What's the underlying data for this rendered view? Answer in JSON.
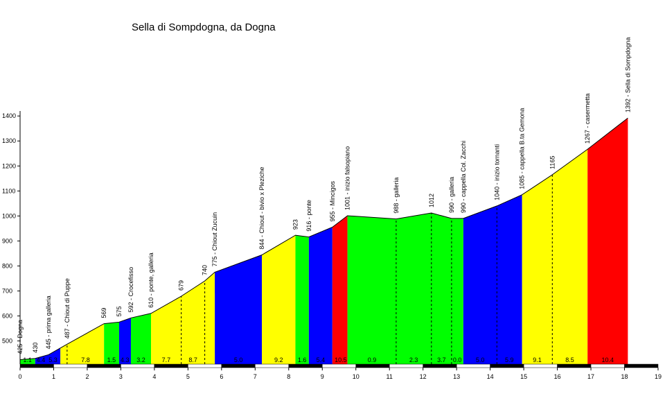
{
  "chart_data": {
    "type": "area",
    "title": "Sella di Sompdogna, da Dogna",
    "xlabel": "",
    "ylabel": "",
    "xlim": [
      0,
      19
    ],
    "ylim": [
      400,
      1400
    ],
    "x_ticks": [
      0,
      1,
      2,
      3,
      4,
      5,
      6,
      7,
      8,
      9,
      10,
      11,
      12,
      13,
      14,
      15,
      16,
      17,
      18,
      19
    ],
    "y_ticks": [
      500,
      600,
      700,
      800,
      900,
      1000,
      1100,
      1200,
      1300,
      1400
    ],
    "segment_colors": {
      "green": "#00ff00",
      "blue": "#0000ff",
      "yellow": "#ffff00",
      "red": "#ff0000"
    },
    "profile": [
      {
        "x": 0.0,
        "y": 425
      },
      {
        "x": 0.45,
        "y": 430
      },
      {
        "x": 0.85,
        "y": 445
      },
      {
        "x": 1.4,
        "y": 487
      },
      {
        "x": 2.5,
        "y": 569
      },
      {
        "x": 2.95,
        "y": 575
      },
      {
        "x": 3.3,
        "y": 592
      },
      {
        "x": 3.9,
        "y": 610
      },
      {
        "x": 4.8,
        "y": 679
      },
      {
        "x": 5.5,
        "y": 740
      },
      {
        "x": 5.8,
        "y": 775
      },
      {
        "x": 7.2,
        "y": 844
      },
      {
        "x": 8.2,
        "y": 923
      },
      {
        "x": 8.6,
        "y": 916
      },
      {
        "x": 9.3,
        "y": 955
      },
      {
        "x": 9.75,
        "y": 1001
      },
      {
        "x": 11.2,
        "y": 988
      },
      {
        "x": 12.25,
        "y": 1012
      },
      {
        "x": 12.85,
        "y": 990
      },
      {
        "x": 13.2,
        "y": 990
      },
      {
        "x": 14.2,
        "y": 1040
      },
      {
        "x": 14.95,
        "y": 1085
      },
      {
        "x": 15.85,
        "y": 1165
      },
      {
        "x": 16.9,
        "y": 1267
      },
      {
        "x": 18.1,
        "y": 1392
      }
    ],
    "segments": [
      {
        "from": 0.0,
        "to": 0.45,
        "color": "green",
        "gradient": "1.1"
      },
      {
        "from": 0.45,
        "to": 1.2,
        "color": "blue",
        "gradient": "4.4"
      },
      {
        "from": 1.2,
        "to": 2.5,
        "color": "yellow",
        "gradient": "7.8"
      },
      {
        "from": 2.5,
        "to": 2.95,
        "color": "green",
        "gradient": "1.5"
      },
      {
        "from": 2.95,
        "to": 3.3,
        "color": "blue",
        "gradient": "4.3"
      },
      {
        "from": 3.3,
        "to": 3.9,
        "color": "green",
        "gradient": "3.2"
      },
      {
        "from": 3.9,
        "to": 5.8,
        "color": "yellow",
        "gradient": "7.7"
      },
      {
        "from": 5.8,
        "to": 7.2,
        "color": "blue",
        "gradient": "5.0"
      },
      {
        "from": 7.2,
        "to": 8.2,
        "color": "yellow",
        "gradient": "9.2"
      },
      {
        "from": 8.2,
        "to": 8.6,
        "color": "green",
        "gradient": "1.6"
      },
      {
        "from": 8.6,
        "to": 9.3,
        "color": "blue",
        "gradient": "5.4"
      },
      {
        "from": 9.3,
        "to": 9.75,
        "color": "red",
        "gradient": "10.5"
      },
      {
        "from": 9.75,
        "to": 13.2,
        "color": "green",
        "gradient": "0.9"
      },
      {
        "from": 13.2,
        "to": 14.95,
        "color": "blue",
        "gradient": "5.2"
      },
      {
        "from": 14.95,
        "to": 16.9,
        "color": "yellow",
        "gradient": "9.1"
      },
      {
        "from": 16.9,
        "to": 18.1,
        "color": "red",
        "gradient": "10.4"
      }
    ],
    "gradient_labels": [
      {
        "x": 0.22,
        "text": "1.1"
      },
      {
        "x": 0.62,
        "text": "4.4"
      },
      {
        "x": 0.98,
        "text": "5.3"
      },
      {
        "x": 1.95,
        "text": "7.8"
      },
      {
        "x": 2.72,
        "text": "1.5"
      },
      {
        "x": 3.12,
        "text": "4.3"
      },
      {
        "x": 3.6,
        "text": "3.2"
      },
      {
        "x": 4.35,
        "text": "7.7"
      },
      {
        "x": 5.15,
        "text": "8.7"
      },
      {
        "x": 6.5,
        "text": "5.0"
      },
      {
        "x": 7.7,
        "text": "9.2"
      },
      {
        "x": 8.4,
        "text": "1.6"
      },
      {
        "x": 8.95,
        "text": "5.4"
      },
      {
        "x": 9.55,
        "text": "10.5"
      },
      {
        "x": 10.48,
        "text": "0.9"
      },
      {
        "x": 11.72,
        "text": "2.3"
      },
      {
        "x": 12.55,
        "text": "3.7"
      },
      {
        "x": 13.02,
        "text": "0.0"
      },
      {
        "x": 13.7,
        "text": "5.0"
      },
      {
        "x": 14.57,
        "text": "5.9"
      },
      {
        "x": 15.4,
        "text": "9.1"
      },
      {
        "x": 16.37,
        "text": "8.5"
      },
      {
        "x": 17.5,
        "text": "10.4"
      }
    ],
    "point_labels": [
      {
        "x": 0.0,
        "y": 425,
        "text": "425 - Dogna"
      },
      {
        "x": 0.45,
        "y": 430,
        "text": "430"
      },
      {
        "x": 0.85,
        "y": 445,
        "text": "445 - prima galleria"
      },
      {
        "x": 1.4,
        "y": 487,
        "text": "487 - Chiout di Puppe"
      },
      {
        "x": 2.5,
        "y": 569,
        "text": "569"
      },
      {
        "x": 2.95,
        "y": 575,
        "text": "575"
      },
      {
        "x": 3.3,
        "y": 592,
        "text": "592 - Crocefisso"
      },
      {
        "x": 3.9,
        "y": 610,
        "text": "610 - ponte, galleria"
      },
      {
        "x": 4.8,
        "y": 679,
        "text": "679"
      },
      {
        "x": 5.5,
        "y": 740,
        "text": "740"
      },
      {
        "x": 5.8,
        "y": 775,
        "text": "775 - Chiout Zucuin"
      },
      {
        "x": 7.2,
        "y": 844,
        "text": "844 - Chiout - bivio x Pleziche"
      },
      {
        "x": 8.2,
        "y": 923,
        "text": "923"
      },
      {
        "x": 8.6,
        "y": 916,
        "text": "916 - ponte"
      },
      {
        "x": 9.3,
        "y": 955,
        "text": "955 - Mincigos"
      },
      {
        "x": 9.75,
        "y": 1001,
        "text": "1001 - inizio falsopiano"
      },
      {
        "x": 11.2,
        "y": 988,
        "text": "988 - galleria"
      },
      {
        "x": 12.25,
        "y": 1012,
        "text": "1012"
      },
      {
        "x": 12.85,
        "y": 990,
        "text": "990 - galleria"
      },
      {
        "x": 13.2,
        "y": 990,
        "text": "990 - cappella Col. Zacchi"
      },
      {
        "x": 14.2,
        "y": 1040,
        "text": "1040 - inizio tornanti"
      },
      {
        "x": 14.95,
        "y": 1085,
        "text": "1085 - cappella B.ta Gemona"
      },
      {
        "x": 15.85,
        "y": 1165,
        "text": "1165"
      },
      {
        "x": 16.9,
        "y": 1267,
        "text": "1267 - casermetta"
      },
      {
        "x": 18.1,
        "y": 1392,
        "text": "1392 - Sella di Sompdogna"
      }
    ],
    "dashed_markers_x": [
      1.4,
      4.8,
      5.5,
      11.2,
      12.25,
      12.85,
      14.2,
      15.85
    ]
  }
}
